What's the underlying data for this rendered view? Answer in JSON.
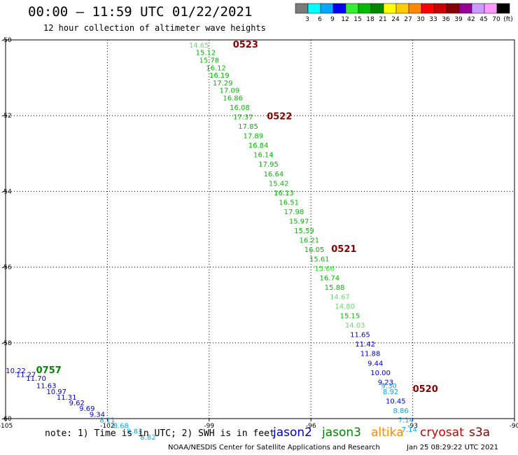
{
  "header": {
    "title": "00:00 – 11:59 UTC 01/22/2021",
    "subtitle": "12 hour collection of altimeter wave heights"
  },
  "colorbar": {
    "unit": "(ft)",
    "bins": [
      {
        "label": "3",
        "color": "#7a7a7a"
      },
      {
        "label": "6",
        "color": "#00ffff"
      },
      {
        "label": "9",
        "color": "#00a8ff"
      },
      {
        "label": "12",
        "color": "#0000ff"
      },
      {
        "label": "15",
        "color": "#33ee33"
      },
      {
        "label": "18",
        "color": "#00bb00"
      },
      {
        "label": "21",
        "color": "#008800"
      },
      {
        "label": "24",
        "color": "#ffff00"
      },
      {
        "label": "27",
        "color": "#ffcc00"
      },
      {
        "label": "30",
        "color": "#ff8800"
      },
      {
        "label": "33",
        "color": "#ff0000"
      },
      {
        "label": "36",
        "color": "#cc0000"
      },
      {
        "label": "39",
        "color": "#880000"
      },
      {
        "label": "42",
        "color": "#990099"
      },
      {
        "label": "45",
        "color": "#cc99ff"
      },
      {
        "label": "70",
        "color": "#ff99ff"
      },
      {
        "label": "",
        "color": "#000000"
      }
    ]
  },
  "footer": {
    "note": "note: 1) Time is in UTC; 2) SWH is in feet",
    "credit": "NOAA/NESDIS Center for Satellite Applications and Research",
    "credit_date": "Jan 25 08:29:22 UTC 2021",
    "satellites": [
      {
        "name": "jason2",
        "color": "#0000cc"
      },
      {
        "name": "jason3",
        "color": "#008800"
      },
      {
        "name": "altika",
        "color": "#ff8800"
      },
      {
        "name": "cryosat",
        "color": "#cc0000"
      },
      {
        "name": "s3a",
        "color": "#880000"
      }
    ]
  },
  "chart_data": {
    "type": "scatter",
    "xlim": [
      -105,
      -90
    ],
    "ylim": [
      -60,
      -50
    ],
    "x_ticks": [
      "-105",
      "-102",
      "-99",
      "-96",
      "-93",
      "-90"
    ],
    "y_ticks": [
      "-50",
      "-52",
      "-54",
      "-56",
      "-58",
      "-60"
    ],
    "grid": true,
    "time_labels": [
      {
        "label": "0523",
        "x": -98.3,
        "y": -50.2,
        "color": "#880000"
      },
      {
        "label": "0522",
        "x": -97.3,
        "y": -52.1,
        "color": "#880000"
      },
      {
        "label": "0521",
        "x": -95.4,
        "y": -55.6,
        "color": "#880000"
      },
      {
        "label": "0520",
        "x": -93.0,
        "y": -59.3,
        "color": "#880000"
      },
      {
        "label": "0757",
        "x": -104.1,
        "y": -58.8,
        "color": "#008800"
      }
    ],
    "series": [
      {
        "name": "jason3",
        "points": [
          {
            "x": -99.3,
            "y": -50.2,
            "v": "14.65",
            "c": "#66dd66"
          },
          {
            "x": -99.1,
            "y": -50.4,
            "v": "15.12",
            "c": "#00bb00"
          },
          {
            "x": -99.0,
            "y": -50.6,
            "v": "15.78",
            "c": "#00bb00"
          },
          {
            "x": -98.8,
            "y": -50.8,
            "v": "16.12",
            "c": "#00bb00"
          },
          {
            "x": -98.7,
            "y": -51.0,
            "v": "16.19",
            "c": "#00bb00"
          },
          {
            "x": -98.6,
            "y": -51.2,
            "v": "17.29",
            "c": "#00bb00"
          },
          {
            "x": -98.4,
            "y": -51.4,
            "v": "17.09",
            "c": "#00bb00"
          },
          {
            "x": -98.3,
            "y": -51.6,
            "v": "16.86",
            "c": "#00bb00"
          },
          {
            "x": -98.1,
            "y": -51.85,
            "v": "16.08",
            "c": "#00bb00"
          },
          {
            "x": -98.0,
            "y": -52.1,
            "v": "17.37",
            "c": "#00bb00"
          },
          {
            "x": -97.85,
            "y": -52.35,
            "v": "17.85",
            "c": "#00bb00"
          },
          {
            "x": -97.7,
            "y": -52.6,
            "v": "17.89",
            "c": "#00bb00"
          },
          {
            "x": -97.55,
            "y": -52.85,
            "v": "16.84",
            "c": "#00bb00"
          },
          {
            "x": -97.4,
            "y": -53.1,
            "v": "16.14",
            "c": "#00bb00"
          },
          {
            "x": -97.25,
            "y": -53.35,
            "v": "17.95",
            "c": "#00bb00"
          },
          {
            "x": -97.1,
            "y": -53.6,
            "v": "16.64",
            "c": "#00bb00"
          },
          {
            "x": -96.95,
            "y": -53.85,
            "v": "15.42",
            "c": "#00bb00"
          },
          {
            "x": -96.8,
            "y": -54.1,
            "v": "16.13",
            "c": "#00bb00"
          },
          {
            "x": -96.65,
            "y": -54.35,
            "v": "16.51",
            "c": "#00bb00"
          },
          {
            "x": -96.5,
            "y": -54.6,
            "v": "17.98",
            "c": "#00bb00"
          },
          {
            "x": -96.35,
            "y": -54.85,
            "v": "15.97",
            "c": "#00bb00"
          },
          {
            "x": -96.2,
            "y": -55.1,
            "v": "15.59",
            "c": "#00bb00"
          },
          {
            "x": -96.05,
            "y": -55.35,
            "v": "16.21",
            "c": "#00bb00"
          },
          {
            "x": -95.9,
            "y": -55.6,
            "v": "16.05",
            "c": "#00bb00"
          },
          {
            "x": -95.75,
            "y": -55.85,
            "v": "15.61",
            "c": "#00bb00"
          },
          {
            "x": -95.6,
            "y": -56.1,
            "v": "15.66",
            "c": "#33ee33"
          },
          {
            "x": -95.45,
            "y": -56.35,
            "v": "16.74",
            "c": "#00bb00"
          },
          {
            "x": -95.3,
            "y": -56.6,
            "v": "15.88",
            "c": "#00bb00"
          },
          {
            "x": -95.15,
            "y": -56.85,
            "v": "14.67",
            "c": "#66dd66"
          },
          {
            "x": -95.0,
            "y": -57.1,
            "v": "14.80",
            "c": "#66dd66"
          },
          {
            "x": -94.85,
            "y": -57.35,
            "v": "15.15",
            "c": "#00bb00"
          },
          {
            "x": -94.7,
            "y": -57.6,
            "v": "14.03",
            "c": "#66dd66"
          }
        ]
      },
      {
        "name": "jason2",
        "points": [
          {
            "x": -94.55,
            "y": -57.85,
            "v": "11.65",
            "c": "#0000cc"
          },
          {
            "x": -94.4,
            "y": -58.1,
            "v": "11.42",
            "c": "#0000cc"
          },
          {
            "x": -94.25,
            "y": -58.35,
            "v": "11.88",
            "c": "#0000cc"
          },
          {
            "x": -94.1,
            "y": -58.6,
            "v": "9.44",
            "c": "#0000cc"
          },
          {
            "x": -93.95,
            "y": -58.85,
            "v": "10.00",
            "c": "#0000cc"
          },
          {
            "x": -93.8,
            "y": -59.1,
            "v": "9.23",
            "c": "#0000cc"
          },
          {
            "x": -93.7,
            "y": -59.2,
            "v": "9.30",
            "c": "#00a8ff"
          },
          {
            "x": -93.65,
            "y": -59.35,
            "v": "8.92",
            "c": "#00a8ff"
          },
          {
            "x": -93.5,
            "y": -59.6,
            "v": "10.45",
            "c": "#0000cc"
          },
          {
            "x": -93.35,
            "y": -59.85,
            "v": "8.86",
            "c": "#00a8ff"
          },
          {
            "x": -93.2,
            "y": -60.1,
            "v": "7.14",
            "c": "#00a8ff"
          },
          {
            "x": -93.1,
            "y": -60.35,
            "v": "7.14",
            "c": "#00a8ff"
          },
          {
            "x": -104.7,
            "y": -58.8,
            "v": "10.22",
            "c": "#0000cc"
          },
          {
            "x": -104.4,
            "y": -58.9,
            "v": "11.27",
            "c": "#0000cc"
          },
          {
            "x": -104.1,
            "y": -59.0,
            "v": "11.70",
            "c": "#0000cc"
          },
          {
            "x": -103.8,
            "y": -59.2,
            "v": "11.63",
            "c": "#0000cc"
          },
          {
            "x": -103.5,
            "y": -59.35,
            "v": "10.97",
            "c": "#0000cc"
          },
          {
            "x": -103.2,
            "y": -59.5,
            "v": "11.31",
            "c": "#0000cc"
          },
          {
            "x": -102.9,
            "y": -59.65,
            "v": "9.62",
            "c": "#0000cc"
          },
          {
            "x": -102.6,
            "y": -59.8,
            "v": "9.69",
            "c": "#0000cc"
          },
          {
            "x": -102.3,
            "y": -59.95,
            "v": "9.34",
            "c": "#0000cc"
          },
          {
            "x": -102.0,
            "y": -60.1,
            "v": "8.11",
            "c": "#00a8ff"
          },
          {
            "x": -101.6,
            "y": -60.25,
            "v": "8.68",
            "c": "#00a8ff"
          },
          {
            "x": -101.2,
            "y": -60.4,
            "v": "8.83",
            "c": "#00a8ff"
          },
          {
            "x": -100.8,
            "y": -60.55,
            "v": "8.82",
            "c": "#00a8ff"
          }
        ]
      }
    ]
  }
}
